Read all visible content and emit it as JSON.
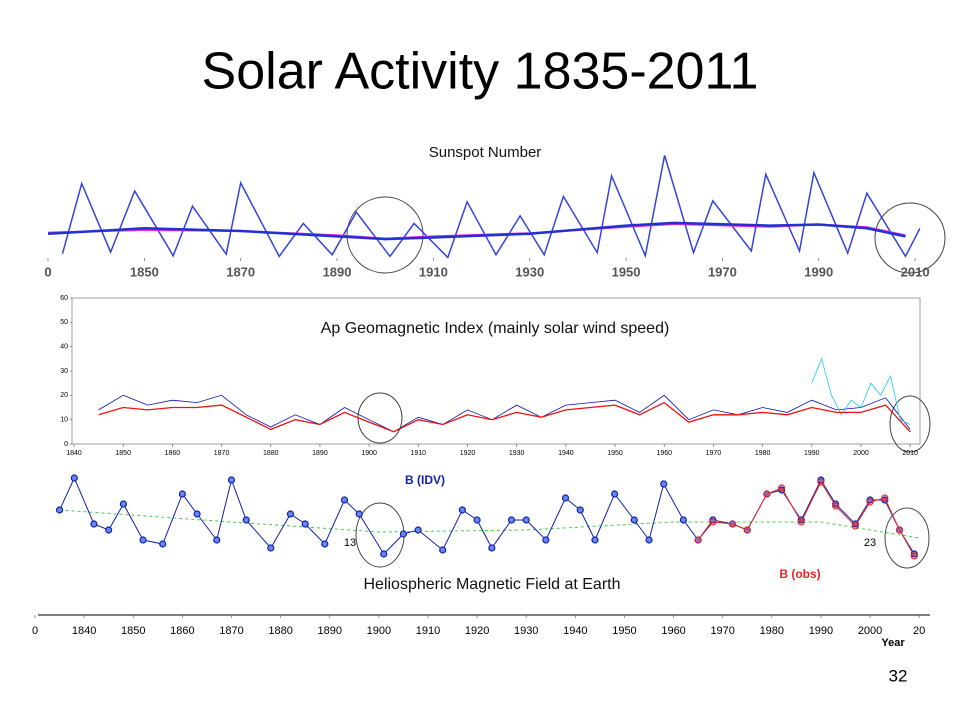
{
  "title": "Solar Activity 1835-2011",
  "page_number": "32",
  "chart_data": [
    {
      "type": "line",
      "title": "Sunspot Number",
      "xlim": [
        1830,
        2016
      ],
      "ylim": [
        0,
        200
      ],
      "xticks": [
        {
          "value": 1830,
          "label": "0"
        },
        1850,
        1870,
        1890,
        1910,
        1930,
        1950,
        1970,
        1990,
        2010
      ],
      "series": [
        {
          "color": "#3344dd",
          "x": [
            1833,
            1837,
            1843,
            1848,
            1856,
            1860,
            1867,
            1870,
            1878,
            1883,
            1889,
            1894,
            1901,
            1906,
            1913,
            1917,
            1923,
            1928,
            1933,
            1937,
            1944,
            1947,
            1954,
            1958,
            1964,
            1968,
            1976,
            1979,
            1986,
            1989,
            1996,
            2000,
            2008,
            2011
          ],
          "values": [
            8,
            138,
            11,
            124,
            4,
            96,
            7,
            139,
            3,
            64,
            6,
            85,
            3,
            64,
            1,
            104,
            6,
            78,
            6,
            114,
            10,
            152,
            4,
            190,
            10,
            106,
            13,
            155,
            13,
            158,
            9,
            120,
            3,
            55
          ]
        },
        {
          "color": "#ee22ee",
          "x": [
            1830,
            1850,
            1870,
            1890,
            1900,
            1910,
            1930,
            1950,
            1960,
            1980,
            1990,
            2000,
            2008
          ],
          "values": [
            47,
            52,
            50,
            42,
            36,
            40,
            46,
            58,
            63,
            58,
            62,
            57,
            42
          ]
        },
        {
          "color": "#2233cc",
          "x": [
            1830,
            1850,
            1870,
            1890,
            1900,
            1910,
            1930,
            1950,
            1960,
            1980,
            1990,
            2000,
            2008
          ],
          "values": [
            45,
            55,
            50,
            40,
            35,
            38,
            45,
            60,
            65,
            60,
            62,
            55,
            40
          ]
        }
      ]
    },
    {
      "type": "line",
      "title": "Ap Geomagnetic Index (mainly solar wind speed)",
      "xlim": [
        1840,
        2012
      ],
      "ylim": [
        0,
        60
      ],
      "xticks": [
        1840,
        1850,
        1860,
        1870,
        1880,
        1890,
        1900,
        1910,
        1920,
        1930,
        1940,
        1950,
        1960,
        1970,
        1980,
        1990,
        2000,
        2010
      ],
      "yticks": [
        0,
        10,
        20,
        30,
        40,
        50,
        60
      ],
      "series": [
        {
          "color": "#1010b0",
          "x": [
            1845,
            1850,
            1855,
            1860,
            1865,
            1870,
            1875,
            1880,
            1885,
            1890,
            1895,
            1900,
            1905,
            1910,
            1915,
            1920,
            1925,
            1930,
            1935,
            1940,
            1945,
            1950,
            1955,
            1960,
            1965,
            1970,
            1975,
            1980,
            1985,
            1990,
            1995,
            2000,
            2005,
            2010
          ],
          "values": [
            14,
            20,
            16,
            18,
            17,
            20,
            12,
            7,
            12,
            8,
            15,
            10,
            5,
            11,
            8,
            14,
            10,
            16,
            11,
            16,
            17,
            18,
            13,
            20,
            10,
            14,
            12,
            15,
            13,
            18,
            14,
            15,
            19,
            6
          ]
        },
        {
          "color": "#22ccee",
          "x": [
            1990,
            1992,
            1994,
            1996,
            1998,
            2000,
            2002,
            2004,
            2006,
            2008,
            2010
          ],
          "values": [
            25,
            35,
            20,
            12,
            18,
            15,
            25,
            20,
            28,
            10,
            8
          ]
        },
        {
          "color": "#ee1111",
          "x": [
            1845,
            1850,
            1855,
            1860,
            1865,
            1870,
            1875,
            1880,
            1885,
            1890,
            1895,
            1900,
            1905,
            1910,
            1915,
            1920,
            1925,
            1930,
            1935,
            1940,
            1945,
            1950,
            1955,
            1960,
            1965,
            1970,
            1975,
            1980,
            1985,
            1990,
            1995,
            2000,
            2005,
            2010
          ],
          "values": [
            12,
            15,
            14,
            15,
            15,
            16,
            11,
            6,
            10,
            8,
            13,
            9,
            5,
            10,
            8,
            12,
            10,
            13,
            11,
            14,
            15,
            16,
            12,
            17,
            9,
            12,
            12,
            13,
            12,
            15,
            13,
            13,
            16,
            5
          ]
        }
      ]
    },
    {
      "type": "line",
      "title": "Heliospheric Magnetic Field at Earth",
      "x_label": "Year",
      "xlim": [
        1830,
        2012
      ],
      "ylim": [
        3,
        9
      ],
      "xticks": [
        {
          "value": 1830,
          "label": "0"
        },
        1840,
        1850,
        1860,
        1870,
        1880,
        1890,
        1900,
        1910,
        1920,
        1930,
        1940,
        1950,
        1960,
        1970,
        1980,
        1990,
        2000,
        {
          "value": 2010,
          "label": "20"
        }
      ],
      "annotations": [
        "13",
        "23"
      ],
      "series": [
        {
          "color": "#44cc44",
          "style": "dashed",
          "x": [
            1835,
            1870,
            1900,
            1930,
            1960,
            1990,
            2010
          ],
          "values": [
            7.0,
            6.4,
            5.9,
            6.0,
            6.4,
            6.4,
            5.6
          ]
        },
        {
          "name": "B (IDV)",
          "color": "#1122aa",
          "markers": true,
          "x": [
            1835,
            1838,
            1842,
            1845,
            1848,
            1852,
            1856,
            1860,
            1863,
            1867,
            1870,
            1873,
            1878,
            1882,
            1885,
            1889,
            1893,
            1896,
            1901,
            1905,
            1908,
            1913,
            1917,
            1920,
            1923,
            1927,
            1930,
            1934,
            1938,
            1941,
            1944,
            1948,
            1952,
            1955,
            1958,
            1962,
            1965,
            1968,
            1972,
            1975,
            1979,
            1982,
            1986,
            1990,
            1993,
            1997,
            2000,
            2003,
            2006,
            2009
          ],
          "values": [
            7.0,
            8.6,
            6.3,
            6.0,
            7.3,
            5.5,
            5.3,
            7.8,
            6.8,
            5.5,
            8.5,
            6.5,
            5.1,
            6.8,
            6.3,
            5.3,
            7.5,
            6.8,
            4.8,
            5.8,
            6.0,
            5.0,
            7.0,
            6.5,
            5.1,
            6.5,
            6.5,
            5.5,
            7.6,
            7.0,
            5.5,
            7.8,
            6.5,
            5.5,
            8.3,
            6.5,
            5.5,
            6.5,
            6.3,
            6.0,
            7.8,
            8.0,
            6.5,
            8.5,
            7.3,
            6.3,
            7.5,
            7.5,
            6.0,
            4.8
          ]
        },
        {
          "name": "B (obs)",
          "color": "#ee2222",
          "markers": true,
          "x": [
            1965,
            1968,
            1972,
            1975,
            1979,
            1982,
            1986,
            1990,
            1993,
            1997,
            2000,
            2003,
            2006,
            2009
          ],
          "values": [
            5.5,
            6.4,
            6.3,
            6.0,
            7.8,
            8.1,
            6.4,
            8.4,
            7.2,
            6.2,
            7.4,
            7.6,
            6.0,
            4.7
          ]
        }
      ]
    }
  ]
}
